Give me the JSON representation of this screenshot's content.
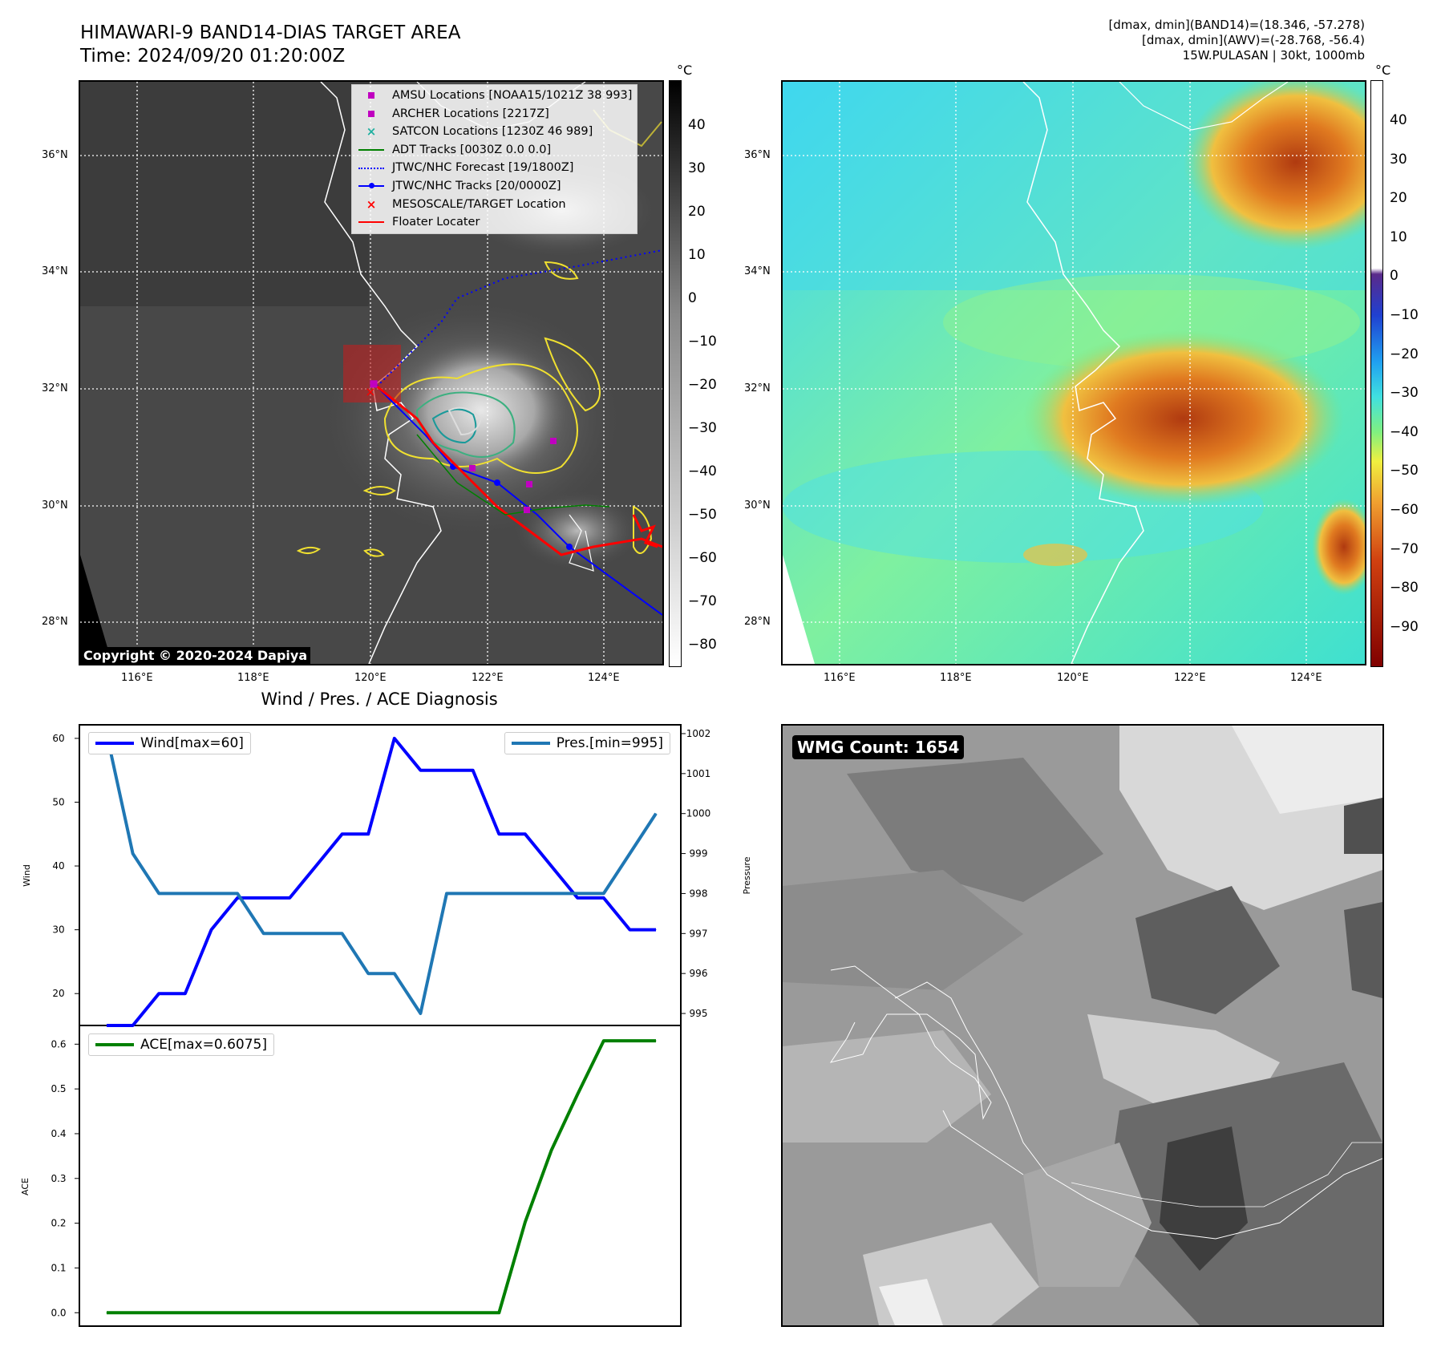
{
  "header": {
    "title_line1": "HIMAWARI-9 BAND14-DIAS TARGET AREA",
    "title_line2": "Time: 2024/09/20 01:20:00Z",
    "info_line1": "[dmax, dmin](BAND14)=(18.346, -57.278)",
    "info_line2": "[dmax, dmin](AWV)=(-28.768, -56.4)",
    "info_line3": "15W.PULASAN | 30kt, 1000mb"
  },
  "map_ticks": {
    "lat": [
      "36°N",
      "34°N",
      "32°N",
      "30°N",
      "28°N"
    ],
    "lon": [
      "116°E",
      "118°E",
      "120°E",
      "122°E",
      "124°E"
    ]
  },
  "ir_colorbar": {
    "unit": "°C",
    "ticks": [
      "40",
      "30",
      "20",
      "10",
      "0",
      "−10",
      "−20",
      "−30",
      "−40",
      "−50",
      "−60",
      "−70",
      "−80"
    ]
  },
  "awv_colorbar": {
    "unit": "°C",
    "ticks": [
      "40",
      "30",
      "20",
      "10",
      "0",
      "−10",
      "−20",
      "−30",
      "−40",
      "−50",
      "−60",
      "−70",
      "−80",
      "−90"
    ]
  },
  "legend": [
    {
      "label": "AMSU Locations [NOAA15/1021Z 38 993]",
      "symbol": "square",
      "color": "#c000c0"
    },
    {
      "label": "ARCHER Locations [2217Z]",
      "symbol": "square",
      "color": "#c000c0"
    },
    {
      "label": "SATCON Locations [1230Z 46 989]",
      "symbol": "x",
      "color": "#20b0a0"
    },
    {
      "label": "ADT Tracks [0030Z 0.0 0.0]",
      "symbol": "line",
      "color": "#008000"
    },
    {
      "label": "JTWC/NHC Forecast [19/1800Z]",
      "symbol": "dotted",
      "color": "#0000ff"
    },
    {
      "label": "JTWC/NHC Tracks [20/0000Z]",
      "symbol": "dotline",
      "color": "#0000ff"
    },
    {
      "label": "MESOSCALE/TARGET Location",
      "symbol": "x",
      "color": "#ff0000"
    },
    {
      "label": "Floater Locater",
      "symbol": "line",
      "color": "#ff0000"
    }
  ],
  "copyright": "Copyright © 2020-2024 Dapiya",
  "wmg_label": "WMG Count: 1654",
  "diag": {
    "title": "Wind / Pres. / ACE Diagnosis",
    "wind_axis_label": "Wind",
    "pres_axis_label": "Pressure",
    "ace_axis_label": "ACE",
    "wind_legend": "Wind[max=60]",
    "pres_legend": "Pres.[min=995]",
    "ace_legend": "ACE[max=0.6075]"
  },
  "chart_data": [
    {
      "type": "line",
      "title": "Wind / Pres. / ACE Diagnosis",
      "ylabel": "Wind",
      "ylim": [
        15,
        62
      ],
      "yticks": [
        20,
        30,
        40,
        50,
        60
      ],
      "series": [
        {
          "name": "Wind[max=60]",
          "color": "#0000ff",
          "values": [
            15,
            15,
            20,
            20,
            30,
            35,
            35,
            35,
            40,
            45,
            45,
            60,
            55,
            55,
            55,
            45,
            45,
            40,
            35,
            35,
            30,
            30
          ]
        }
      ]
    },
    {
      "type": "line",
      "ylabel": "Pressure",
      "ylim": [
        994.7,
        1002.2
      ],
      "yticks": [
        995,
        996,
        997,
        998,
        999,
        1000,
        1001,
        1002
      ],
      "series": [
        {
          "name": "Pres.[min=995]",
          "color": "#1f77b4",
          "values": [
            1002,
            999,
            998,
            998,
            998,
            998,
            997,
            997,
            997,
            997,
            996,
            996,
            995,
            998,
            998,
            998,
            998,
            998,
            998,
            998,
            999,
            1000
          ]
        }
      ]
    },
    {
      "type": "line",
      "ylabel": "ACE",
      "ylim": [
        -0.03,
        0.64
      ],
      "yticks": [
        0.0,
        0.1,
        0.2,
        0.3,
        0.4,
        0.5,
        0.6
      ],
      "series": [
        {
          "name": "ACE[max=0.6075]",
          "color": "#008000",
          "values": [
            0,
            0,
            0,
            0,
            0,
            0,
            0,
            0,
            0,
            0,
            0,
            0,
            0,
            0,
            0,
            0,
            0.2025,
            0.3625,
            0.4875,
            0.6075,
            0.6075,
            0.6075
          ]
        }
      ]
    }
  ]
}
